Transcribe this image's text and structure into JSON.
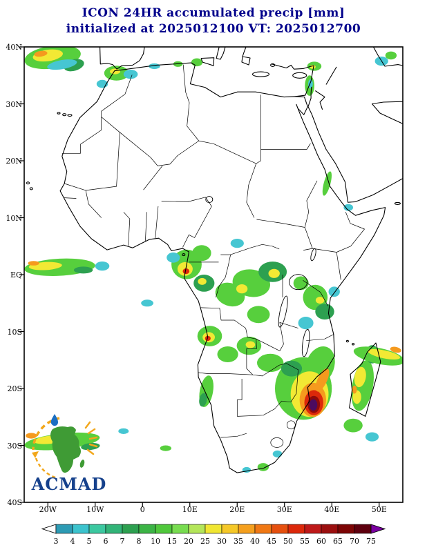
{
  "title": {
    "line1": "ICON 24HR accumulated precip [mm]",
    "line2": "initialized at 2025012100 VT: 2025012700"
  },
  "forecast": {
    "model": "ICON",
    "accumulation": "24HR",
    "units": "mm",
    "initialized": "2025012100",
    "valid_time": "2025012700"
  },
  "map": {
    "lat_labels": [
      "40N",
      "30N",
      "20N",
      "10N",
      "EQ",
      "10S",
      "20S",
      "30S",
      "40S"
    ],
    "lon_labels": [
      "20W",
      "10W",
      "0",
      "10E",
      "20E",
      "30E",
      "40E",
      "50E"
    ],
    "extent": {
      "lon_min": -25,
      "lon_max": 55,
      "lat_min": -40,
      "lat_max": 40
    }
  },
  "colorbar": {
    "tick_labels": [
      "3",
      "4",
      "5",
      "6",
      "7",
      "8",
      "10",
      "15",
      "20",
      "25",
      "30",
      "35",
      "40",
      "45",
      "50",
      "55",
      "60",
      "65",
      "70",
      "75"
    ],
    "segment_colors": [
      "#2d9bb4",
      "#3cc3cd",
      "#3cc8a0",
      "#32b478",
      "#2da050",
      "#3cb446",
      "#50c83c",
      "#78dc50",
      "#b4e65a",
      "#f0e632",
      "#f5c828",
      "#f5a01e",
      "#f07814",
      "#e6500f",
      "#dc280a",
      "#be1919",
      "#9b0f0f",
      "#7d0505",
      "#5e000e"
    ],
    "under_color": "#ffffff",
    "over_color": "#7a00a0"
  },
  "palette": {
    "cyan": "#46c6d2",
    "green_light": "#57cf3d",
    "green_mid": "#2da050",
    "yellow": "#f2e934",
    "orange": "#f59a1e",
    "red": "#dc280a",
    "dark_red": "#8f0a0a",
    "purple": "#4b0a5f"
  },
  "colors": {
    "title": "#00008b",
    "axis": "#000000",
    "map_lines": "#000000"
  },
  "logo": {
    "text": "ACMAD",
    "africa_color": "#3f9b35",
    "drop_color": "#1b6ec2",
    "accent_color": "#f2a71b",
    "text_color": "#16418c"
  },
  "precip_regions": [
    {
      "n": "ne-atlantic-band",
      "lon": -19,
      "lat": 38.2,
      "rx": 6,
      "ry": 2,
      "rot": -8,
      "level": "green_light"
    },
    {
      "n": "ne-atlantic-core",
      "lon": -20,
      "lat": 38.5,
      "rx": 3.2,
      "ry": 1,
      "rot": -8,
      "level": "yellow"
    },
    {
      "n": "ne-atlantic-max",
      "lon": -21.5,
      "lat": 38.8,
      "rx": 1.4,
      "ry": 0.5,
      "rot": -8,
      "level": "orange"
    },
    {
      "n": "madeira-patch",
      "lon": -14.5,
      "lat": 36.8,
      "rx": 2.2,
      "ry": 1,
      "rot": -15,
      "level": "green_mid"
    },
    {
      "n": "madeira-fringe",
      "lon": -17,
      "lat": 36.9,
      "rx": 3.2,
      "ry": 0.8,
      "rot": -10,
      "level": "cyan"
    },
    {
      "n": "gibraltar-patch",
      "lon": -5.5,
      "lat": 35.4,
      "rx": 2.6,
      "ry": 1.3,
      "rot": 0,
      "level": "green_light"
    },
    {
      "n": "gibraltar-core",
      "lon": -5.8,
      "lat": 35.7,
      "rx": 1.1,
      "ry": 0.5,
      "rot": 0,
      "level": "yellow"
    },
    {
      "n": "oran-patch",
      "lon": -2.5,
      "lat": 35.2,
      "rx": 1.5,
      "ry": 0.8,
      "rot": 0,
      "level": "cyan"
    },
    {
      "n": "morocco-coast",
      "lon": -8.5,
      "lat": 33.5,
      "rx": 1.2,
      "ry": 0.7,
      "rot": 0,
      "level": "cyan"
    },
    {
      "n": "algiers-speck",
      "lon": 2.5,
      "lat": 36.6,
      "rx": 1.2,
      "ry": 0.5,
      "rot": 0,
      "level": "cyan"
    },
    {
      "n": "tunis-speck",
      "lon": 7.5,
      "lat": 37,
      "rx": 1,
      "ry": 0.5,
      "rot": 0,
      "level": "green_light"
    },
    {
      "n": "sicily-patch",
      "lon": 11.5,
      "lat": 37.3,
      "rx": 1.2,
      "ry": 0.7,
      "rot": 0,
      "level": "green_light"
    },
    {
      "n": "levant-patch",
      "lon": 35.3,
      "lat": 33.2,
      "rx": 1,
      "ry": 1.8,
      "rot": 0,
      "level": "green_light"
    },
    {
      "n": "levant-core",
      "lon": 35.5,
      "lat": 33.5,
      "rx": 0.5,
      "ry": 0.8,
      "rot": 0,
      "level": "cyan"
    },
    {
      "n": "turkey-coast-patch",
      "lon": 36.3,
      "lat": 36.6,
      "rx": 1.5,
      "ry": 0.8,
      "rot": 0,
      "level": "green_light"
    },
    {
      "n": "turkey-coast-core",
      "lon": 36,
      "lat": 36.5,
      "rx": 0.6,
      "ry": 0.35,
      "rot": 0,
      "level": "yellow"
    },
    {
      "n": "caspian-speck-1",
      "lon": 50.5,
      "lat": 37.5,
      "rx": 1.4,
      "ry": 0.8,
      "rot": 0,
      "level": "cyan"
    },
    {
      "n": "caspian-speck-2",
      "lon": 52.5,
      "lat": 38.5,
      "rx": 1.2,
      "ry": 0.7,
      "rot": 0,
      "level": "green_light"
    },
    {
      "n": "eq-atlantic-band",
      "lon": -17.5,
      "lat": 1.3,
      "rx": 7.5,
      "ry": 1.5,
      "rot": -3,
      "level": "green_light"
    },
    {
      "n": "eq-atlantic-core",
      "lon": -20.5,
      "lat": 1.5,
      "rx": 3.5,
      "ry": 0.7,
      "rot": -3,
      "level": "yellow"
    },
    {
      "n": "eq-atlantic-east",
      "lon": -12.5,
      "lat": 0.8,
      "rx": 2,
      "ry": 0.6,
      "rot": 0,
      "level": "green_mid"
    },
    {
      "n": "eq-atlantic-max",
      "lon": -23,
      "lat": 2,
      "rx": 1.2,
      "ry": 0.4,
      "rot": 0,
      "level": "orange"
    },
    {
      "n": "eq-atlantic-fringe",
      "lon": -8.5,
      "lat": 1.5,
      "rx": 1.5,
      "ry": 0.8,
      "rot": 0,
      "level": "cyan"
    },
    {
      "n": "gabon-cluster",
      "lon": 9.3,
      "lat": 1.8,
      "rx": 3.2,
      "ry": 2.6,
      "rot": 0,
      "level": "green_light"
    },
    {
      "n": "gabon-core",
      "lon": 9,
      "lat": 1,
      "rx": 1.6,
      "ry": 1.2,
      "rot": 0,
      "level": "yellow"
    },
    {
      "n": "gabon-max",
      "lon": 9.2,
      "lat": 0.6,
      "rx": 0.7,
      "ry": 0.5,
      "rot": 0,
      "level": "red"
    },
    {
      "n": "cameroon-patch",
      "lon": 12.5,
      "lat": 3.8,
      "rx": 2,
      "ry": 1.4,
      "rot": 0,
      "level": "green_light"
    },
    {
      "n": "bight-fringe",
      "lon": 6.5,
      "lat": 3,
      "rx": 1.4,
      "ry": 0.9,
      "rot": 0,
      "level": "cyan"
    },
    {
      "n": "congo-coast-patch",
      "lon": 13,
      "lat": -1.5,
      "rx": 2.2,
      "ry": 1.5,
      "rot": 0,
      "level": "green_mid"
    },
    {
      "n": "congo-coast-core",
      "lon": 12.6,
      "lat": -1.2,
      "rx": 0.9,
      "ry": 0.6,
      "rot": 0,
      "level": "yellow"
    },
    {
      "n": "congo-band-w",
      "lon": 18.5,
      "lat": -3.5,
      "rx": 3.2,
      "ry": 2,
      "rot": 20,
      "level": "green_light"
    },
    {
      "n": "congo-band-c",
      "lon": 23,
      "lat": -1.5,
      "rx": 4,
      "ry": 2.4,
      "rot": 10,
      "level": "green_light"
    },
    {
      "n": "congo-band-e",
      "lon": 27.5,
      "lat": 0.5,
      "rx": 3,
      "ry": 1.8,
      "rot": 0,
      "level": "green_mid"
    },
    {
      "n": "congo-band-core",
      "lon": 27.8,
      "lat": 0.2,
      "rx": 1.2,
      "ry": 0.8,
      "rot": 0,
      "level": "yellow"
    },
    {
      "n": "congo-yellow-w",
      "lon": 21,
      "lat": -2.5,
      "rx": 1.2,
      "ry": 0.8,
      "rot": 0,
      "level": "yellow"
    },
    {
      "n": "congo-south",
      "lon": 24.5,
      "lat": -7,
      "rx": 2.4,
      "ry": 1.5,
      "rot": 0,
      "level": "green_light"
    },
    {
      "n": "car-speck",
      "lon": 20,
      "lat": 5.5,
      "rx": 1.4,
      "ry": 0.8,
      "rot": 0,
      "level": "cyan"
    },
    {
      "n": "tanzania-patch",
      "lon": 36.5,
      "lat": -4,
      "rx": 2.6,
      "ry": 2.2,
      "rot": 0,
      "level": "green_light"
    },
    {
      "n": "tanzania-south",
      "lon": 38.5,
      "lat": -6.5,
      "rx": 2,
      "ry": 1.4,
      "rot": 0,
      "level": "green_mid"
    },
    {
      "n": "tanzania-core",
      "lon": 37.5,
      "lat": -4.5,
      "rx": 0.9,
      "ry": 0.6,
      "rot": 0,
      "level": "yellow"
    },
    {
      "n": "victoria-patch",
      "lon": 33.5,
      "lat": -1.5,
      "rx": 1.6,
      "ry": 1.2,
      "rot": 0,
      "level": "green_light"
    },
    {
      "n": "rukwa-fringe",
      "lon": 34.5,
      "lat": -8.5,
      "rx": 1.6,
      "ry": 1.1,
      "rot": 0,
      "level": "cyan"
    },
    {
      "n": "kenya-coast-speck",
      "lon": 40.5,
      "lat": -3,
      "rx": 1.2,
      "ry": 0.9,
      "rot": 0,
      "level": "cyan"
    },
    {
      "n": "angola-patch",
      "lon": 14.2,
      "lat": -10.8,
      "rx": 2.6,
      "ry": 1.8,
      "rot": 0,
      "level": "green_light"
    },
    {
      "n": "angola-core",
      "lon": 14,
      "lat": -11,
      "rx": 1.3,
      "ry": 0.9,
      "rot": 0,
      "level": "yellow"
    },
    {
      "n": "angola-max",
      "lon": 13.8,
      "lat": -11.2,
      "rx": 0.6,
      "ry": 0.45,
      "rot": 0,
      "level": "red"
    },
    {
      "n": "angola-se-patch",
      "lon": 18,
      "lat": -14,
      "rx": 2.2,
      "ry": 1.4,
      "rot": 0,
      "level": "green_light"
    },
    {
      "n": "zambia-patch",
      "lon": 22.5,
      "lat": -12.5,
      "rx": 2.6,
      "ry": 1.6,
      "rot": 0,
      "level": "green_light"
    },
    {
      "n": "zambia-core",
      "lon": 22.8,
      "lat": -12.3,
      "rx": 1,
      "ry": 0.6,
      "rot": 0,
      "level": "yellow"
    },
    {
      "n": "zambia-east-patch",
      "lon": 27,
      "lat": -15.5,
      "rx": 2.8,
      "ry": 1.6,
      "rot": 0,
      "level": "green_light"
    },
    {
      "n": "namibia-coast-band",
      "lon": 13.5,
      "lat": -20.5,
      "rx": 1.4,
      "ry": 2.8,
      "rot": 10,
      "level": "green_light"
    },
    {
      "n": "namibia-coast-core",
      "lon": 12.8,
      "lat": -22,
      "rx": 0.8,
      "ry": 1.2,
      "rot": 10,
      "level": "green_mid"
    },
    {
      "n": "cyclone-outer",
      "lon": 34,
      "lat": -20,
      "rx": 6,
      "ry": 5.5,
      "rot": 0,
      "level": "green_light"
    },
    {
      "n": "cyclone-channel-ext",
      "lon": 37.5,
      "lat": -16,
      "rx": 3,
      "ry": 3.5,
      "rot": 20,
      "level": "green_light"
    },
    {
      "n": "cyclone-yellow",
      "lon": 35.3,
      "lat": -21,
      "rx": 4,
      "ry": 4,
      "rot": 0,
      "level": "yellow"
    },
    {
      "n": "cyclone-orange",
      "lon": 36,
      "lat": -22,
      "rx": 2.8,
      "ry": 3,
      "rot": 0,
      "level": "orange"
    },
    {
      "n": "cyclone-red",
      "lon": 36.2,
      "lat": -22.5,
      "rx": 2,
      "ry": 2.2,
      "rot": 0,
      "level": "red"
    },
    {
      "n": "cyclone-darkred",
      "lon": 36.2,
      "lat": -22.8,
      "rx": 1.3,
      "ry": 1.5,
      "rot": 0,
      "level": "dark_red"
    },
    {
      "n": "cyclone-core",
      "lon": 36.1,
      "lat": -22.9,
      "rx": 0.85,
      "ry": 1,
      "rot": 0,
      "level": "purple"
    },
    {
      "n": "cyclone-hook",
      "lon": 38,
      "lat": -18.5,
      "rx": 1,
      "ry": 2.2,
      "rot": 25,
      "level": "orange"
    },
    {
      "n": "zimbabwe-patch",
      "lon": 31.5,
      "lat": -16.5,
      "rx": 2.2,
      "ry": 1.4,
      "rot": 0,
      "level": "green_mid"
    },
    {
      "n": "madagascar-band",
      "lon": 46.5,
      "lat": -19.5,
      "rx": 2.2,
      "ry": 4.5,
      "rot": 10,
      "level": "green_light"
    },
    {
      "n": "madagascar-core-n",
      "lon": 46,
      "lat": -18,
      "rx": 1.2,
      "ry": 1.8,
      "rot": 10,
      "level": "yellow"
    },
    {
      "n": "madagascar-core-s",
      "lon": 45.3,
      "lat": -21.5,
      "rx": 0.9,
      "ry": 1.2,
      "rot": 0,
      "level": "yellow"
    },
    {
      "n": "madagascar-max",
      "lon": 44.8,
      "lat": -20.2,
      "rx": 0.5,
      "ry": 0.7,
      "rot": 0,
      "level": "orange"
    },
    {
      "n": "madagascar-north",
      "lon": 48.5,
      "lat": -14,
      "rx": 1.4,
      "ry": 1.6,
      "rot": 0,
      "level": "green_mid"
    },
    {
      "n": "indian-streak",
      "lon": 50,
      "lat": -14.3,
      "rx": 5.5,
      "ry": 1.4,
      "rot": 12,
      "level": "green_light"
    },
    {
      "n": "indian-streak-core",
      "lon": 51,
      "lat": -14,
      "rx": 3.5,
      "ry": 0.7,
      "rot": 12,
      "level": "yellow"
    },
    {
      "n": "indian-streak-max",
      "lon": 53.5,
      "lat": -13.2,
      "rx": 1.2,
      "ry": 0.5,
      "rot": 12,
      "level": "orange"
    },
    {
      "n": "mada-south-patch",
      "lon": 44.5,
      "lat": -26.5,
      "rx": 2,
      "ry": 1.2,
      "rot": 0,
      "level": "green_light"
    },
    {
      "n": "indian-se-speck",
      "lon": 48.5,
      "lat": -28.5,
      "rx": 1.4,
      "ry": 0.8,
      "rot": 0,
      "level": "cyan"
    },
    {
      "n": "sw-atlantic-band",
      "lon": -17,
      "lat": -29.3,
      "rx": 8,
      "ry": 1.4,
      "rot": -6,
      "level": "green_light"
    },
    {
      "n": "sw-atlantic-core",
      "lon": -19.5,
      "lat": -29,
      "rx": 3.5,
      "ry": 0.7,
      "rot": -6,
      "level": "yellow"
    },
    {
      "n": "sw-atlantic-east",
      "lon": -11,
      "lat": -30.2,
      "rx": 2,
      "ry": 0.6,
      "rot": -6,
      "level": "green_mid"
    },
    {
      "n": "sw-atlantic-max",
      "lon": -23.5,
      "lat": -28.3,
      "rx": 1.2,
      "ry": 0.5,
      "rot": 0,
      "level": "orange"
    },
    {
      "n": "sa-coast-speck-1",
      "lon": 25.5,
      "lat": -33.8,
      "rx": 1.2,
      "ry": 0.7,
      "rot": 0,
      "level": "green_light"
    },
    {
      "n": "sa-coast-speck-2",
      "lon": 28.5,
      "lat": -31.5,
      "rx": 1,
      "ry": 0.6,
      "rot": 0,
      "level": "cyan"
    },
    {
      "n": "sa-coast-speck-3",
      "lon": 22,
      "lat": -34.3,
      "rx": 0.9,
      "ry": 0.5,
      "rot": 0,
      "level": "cyan"
    },
    {
      "n": "red-sea-sliver",
      "lon": 39,
      "lat": 16,
      "rx": 0.7,
      "ry": 2.2,
      "rot": 15,
      "level": "green_light"
    },
    {
      "n": "gulf-aden-speck",
      "lon": 43.5,
      "lat": 11.8,
      "rx": 1,
      "ry": 0.6,
      "rot": 0,
      "level": "cyan"
    },
    {
      "n": "atlantic-sw-speck",
      "lon": -4,
      "lat": -27.5,
      "rx": 1.1,
      "ry": 0.5,
      "rot": 0,
      "level": "cyan"
    },
    {
      "n": "atlantic-s-speck",
      "lon": 4.9,
      "lat": -30.5,
      "rx": 1.2,
      "ry": 0.5,
      "rot": 0,
      "level": "green_light"
    },
    {
      "n": "guinea-gulf-speck",
      "lon": 1,
      "lat": -5,
      "rx": 1.3,
      "ry": 0.6,
      "rot": 0,
      "level": "cyan"
    }
  ]
}
